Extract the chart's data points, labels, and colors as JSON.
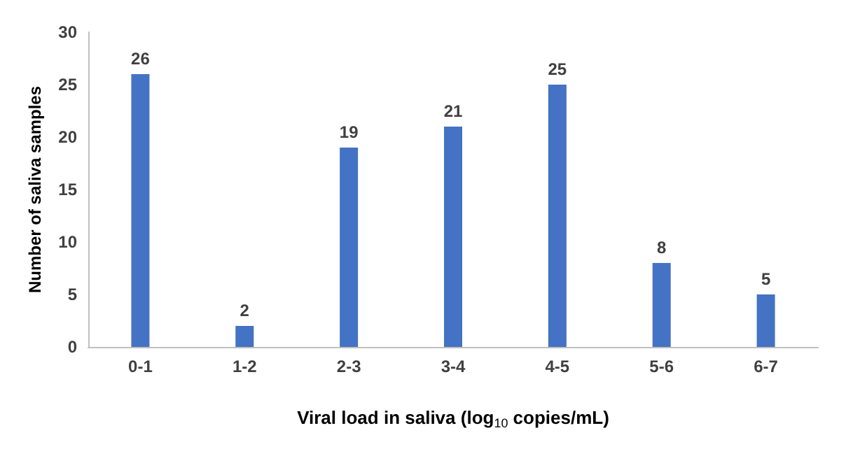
{
  "chart_data": {
    "type": "bar",
    "categories": [
      "0-1",
      "1-2",
      "2-3",
      "3-4",
      "4-5",
      "5-6",
      "6-7"
    ],
    "values": [
      26,
      2,
      19,
      21,
      25,
      8,
      5
    ],
    "color": "#4472c4",
    "xlabel": "Viral load in saliva (log$_{10}$ copies/mL)",
    "ylabel": "Number of saliva samples",
    "ylim": [
      0,
      30
    ],
    "yticks": [
      0,
      5,
      10,
      15,
      20,
      25,
      30
    ],
    "grid": false,
    "data_labels": true
  }
}
